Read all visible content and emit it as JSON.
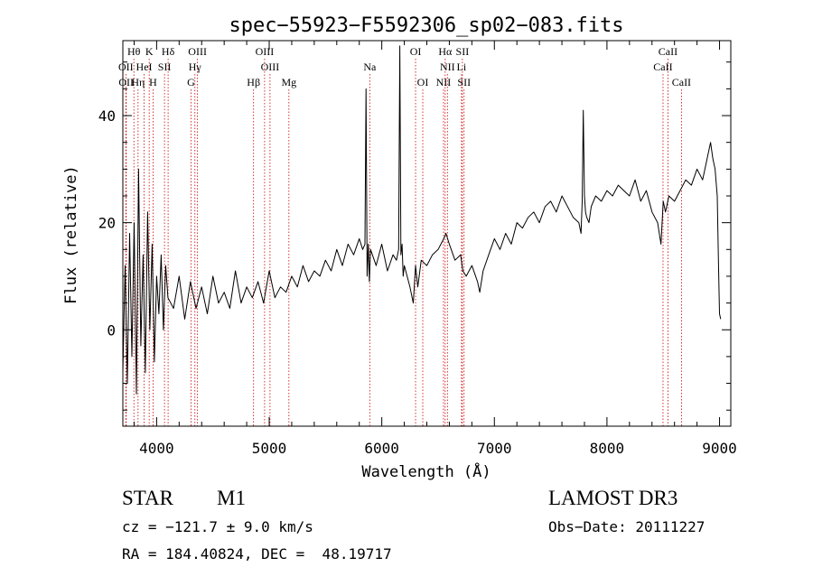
{
  "chart_data": {
    "type": "line",
    "title": "spec−55923−F5592306_sp02−083.fits",
    "xlabel": "Wavelength (Å)",
    "ylabel": "Flux (relative)",
    "xlim": [
      3700,
      9100
    ],
    "ylim": [
      -18,
      54
    ],
    "xticks": [
      4000,
      5000,
      6000,
      7000,
      8000,
      9000
    ],
    "yticks": [
      0,
      20,
      40
    ],
    "grid": false,
    "colors": {
      "spectrum": "#000000",
      "lines": "#cc0000",
      "axes": "#000000"
    },
    "spectrum": {
      "x": [
        3700,
        3720,
        3740,
        3760,
        3780,
        3800,
        3820,
        3840,
        3860,
        3880,
        3900,
        3920,
        3940,
        3960,
        3980,
        4000,
        4020,
        4040,
        4060,
        4080,
        4100,
        4150,
        4200,
        4250,
        4300,
        4350,
        4400,
        4450,
        4500,
        4550,
        4600,
        4650,
        4700,
        4750,
        4800,
        4850,
        4900,
        4950,
        5000,
        5050,
        5100,
        5150,
        5200,
        5250,
        5300,
        5350,
        5400,
        5450,
        5500,
        5550,
        5600,
        5650,
        5700,
        5750,
        5800,
        5830,
        5850,
        5860,
        5870,
        5880,
        5890,
        5900,
        5950,
        6000,
        6050,
        6100,
        6130,
        6150,
        6160,
        6170,
        6180,
        6190,
        6200,
        6250,
        6280,
        6300,
        6320,
        6350,
        6400,
        6450,
        6500,
        6550,
        6570,
        6600,
        6650,
        6700,
        6720,
        6750,
        6800,
        6850,
        6870,
        6900,
        6950,
        7000,
        7050,
        7100,
        7150,
        7200,
        7250,
        7300,
        7350,
        7400,
        7450,
        7500,
        7550,
        7600,
        7650,
        7700,
        7750,
        7770,
        7780,
        7790,
        7800,
        7810,
        7820,
        7840,
        7860,
        7900,
        7950,
        8000,
        8050,
        8100,
        8150,
        8200,
        8250,
        8300,
        8350,
        8400,
        8450,
        8480,
        8500,
        8520,
        8550,
        8600,
        8650,
        8700,
        8750,
        8800,
        8850,
        8880,
        8900,
        8920,
        8940,
        8960,
        8980,
        8990,
        9000,
        9010
      ],
      "y": [
        -8,
        12,
        -10,
        18,
        -5,
        20,
        -12,
        30,
        -3,
        14,
        -8,
        22,
        0,
        16,
        -6,
        10,
        3,
        14,
        0,
        12,
        6,
        4,
        10,
        2,
        9,
        4,
        8,
        3,
        10,
        5,
        7,
        4,
        11,
        5,
        8,
        6,
        9,
        5,
        11,
        6,
        8,
        7,
        10,
        8,
        12,
        9,
        11,
        10,
        13,
        11,
        15,
        12,
        16,
        14,
        17,
        15,
        16,
        45,
        10,
        16,
        9,
        15,
        12,
        16,
        11,
        14,
        13,
        15,
        53,
        14,
        16,
        10,
        12,
        8,
        5,
        12,
        8,
        13,
        12,
        14,
        15,
        17,
        18,
        16,
        13,
        14,
        11,
        10,
        12,
        9,
        7,
        11,
        14,
        17,
        15,
        18,
        16,
        20,
        19,
        21,
        22,
        20,
        23,
        24,
        22,
        25,
        23,
        21,
        20,
        18,
        24,
        41,
        25,
        22,
        21,
        20,
        23,
        25,
        24,
        26,
        25,
        27,
        26,
        25,
        28,
        24,
        26,
        22,
        20,
        16,
        24,
        22,
        25,
        24,
        26,
        28,
        27,
        30,
        28,
        31,
        33,
        35,
        32,
        30,
        25,
        13,
        3,
        2
      ]
    },
    "line_labels": [
      {
        "text": "Hθ",
        "x": 3798,
        "row": 1
      },
      {
        "text": "K",
        "x": 3934,
        "row": 1
      },
      {
        "text": "Hδ",
        "x": 4102,
        "row": 1
      },
      {
        "text": "OIII",
        "x": 4363,
        "row": 1
      },
      {
        "text": "OIII",
        "x": 4959,
        "row": 1
      },
      {
        "text": "OI",
        "x": 6300,
        "row": 1
      },
      {
        "text": "Hα",
        "x": 6563,
        "row": 1
      },
      {
        "text": "SII",
        "x": 6716,
        "row": 1
      },
      {
        "text": "CaII",
        "x": 8542,
        "row": 1
      },
      {
        "text": "OII",
        "x": 3727,
        "row": 2
      },
      {
        "text": "HeI",
        "x": 3889,
        "row": 2
      },
      {
        "text": "SII",
        "x": 4070,
        "row": 2
      },
      {
        "text": "Hγ",
        "x": 4340,
        "row": 2
      },
      {
        "text": "OIII",
        "x": 5007,
        "row": 2
      },
      {
        "text": "Na",
        "x": 5893,
        "row": 2
      },
      {
        "text": "NII",
        "x": 6583,
        "row": 2
      },
      {
        "text": "Li",
        "x": 6708,
        "row": 2
      },
      {
        "text": "CaII",
        "x": 8498,
        "row": 2
      },
      {
        "text": "OII",
        "x": 3730,
        "row": 3
      },
      {
        "text": "Hη",
        "x": 3835,
        "row": 3
      },
      {
        "text": "H",
        "x": 3968,
        "row": 3
      },
      {
        "text": "G",
        "x": 4305,
        "row": 3
      },
      {
        "text": "Hβ",
        "x": 4861,
        "row": 3
      },
      {
        "text": "Mg",
        "x": 5175,
        "row": 3
      },
      {
        "text": "OI",
        "x": 6364,
        "row": 3
      },
      {
        "text": "NII",
        "x": 6548,
        "row": 3
      },
      {
        "text": "SII",
        "x": 6731,
        "row": 3
      },
      {
        "text": "CaII",
        "x": 8662,
        "row": 3
      }
    ]
  },
  "info": {
    "object_class": "STAR",
    "subclass": "M1",
    "survey": "LAMOST DR3",
    "cz_text": "cz = −121.7 ± 9.0 km/s",
    "obs_date_text": "Obs−Date: 20111227",
    "coords_text": "RA = 184.40824, DEC =  48.19717"
  }
}
